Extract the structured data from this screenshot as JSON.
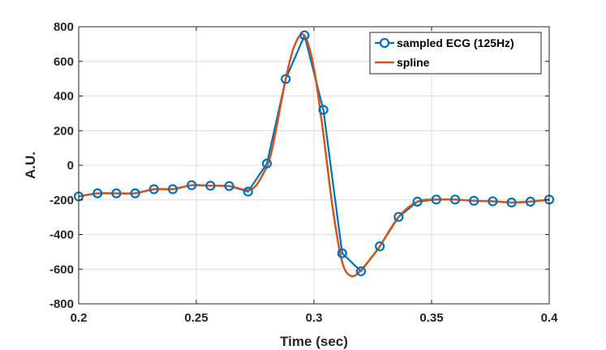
{
  "chart_data": {
    "type": "line",
    "xlabel": "Time (sec)",
    "ylabel": "A.U.",
    "xlim": [
      0.2,
      0.4
    ],
    "ylim": [
      -800,
      800
    ],
    "xticks": [
      0.2,
      0.25,
      0.3,
      0.35,
      0.4
    ],
    "xtick_labels": [
      "0.2",
      "0.25",
      "0.3",
      "0.35",
      "0.4"
    ],
    "yticks": [
      -800,
      -600,
      -400,
      -200,
      0,
      200,
      400,
      600,
      800
    ],
    "ytick_labels": [
      "-800",
      "-600",
      "-400",
      "-200",
      "0",
      "200",
      "400",
      "600",
      "800"
    ],
    "grid": true,
    "legend_position": "top-right",
    "series": [
      {
        "name": "sampled ECG (125Hz)",
        "color": "#0072BD",
        "marker": "circle",
        "x": [
          0.2,
          0.208,
          0.216,
          0.224,
          0.232,
          0.24,
          0.248,
          0.256,
          0.264,
          0.272,
          0.28,
          0.288,
          0.296,
          0.304,
          0.312,
          0.32,
          0.328,
          0.336,
          0.344,
          0.352,
          0.36,
          0.368,
          0.376,
          0.384,
          0.392,
          0.4
        ],
        "y": [
          -180,
          -162,
          -162,
          -162,
          -138,
          -138,
          -115,
          -118,
          -120,
          -152,
          10,
          498,
          750,
          320,
          -508,
          -612,
          -468,
          -298,
          -210,
          -198,
          -198,
          -205,
          -208,
          -215,
          -210,
          -198
        ]
      },
      {
        "name": "spline",
        "color": "#D95319",
        "marker": "none",
        "x": [
          0.2,
          0.208,
          0.216,
          0.224,
          0.232,
          0.24,
          0.248,
          0.256,
          0.264,
          0.27,
          0.274,
          0.278,
          0.282,
          0.288,
          0.292,
          0.296,
          0.3,
          0.304,
          0.308,
          0.312,
          0.316,
          0.32,
          0.324,
          0.328,
          0.336,
          0.344,
          0.352,
          0.36,
          0.368,
          0.376,
          0.384,
          0.392,
          0.4
        ],
        "y": [
          -180,
          -162,
          -162,
          -162,
          -138,
          -138,
          -115,
          -118,
          -120,
          -140,
          -135,
          -60,
          80,
          498,
          700,
          748,
          560,
          180,
          -250,
          -560,
          -640,
          -605,
          -540,
          -468,
          -298,
          -210,
          -198,
          -198,
          -205,
          -208,
          -215,
          -210,
          -198
        ]
      }
    ]
  }
}
